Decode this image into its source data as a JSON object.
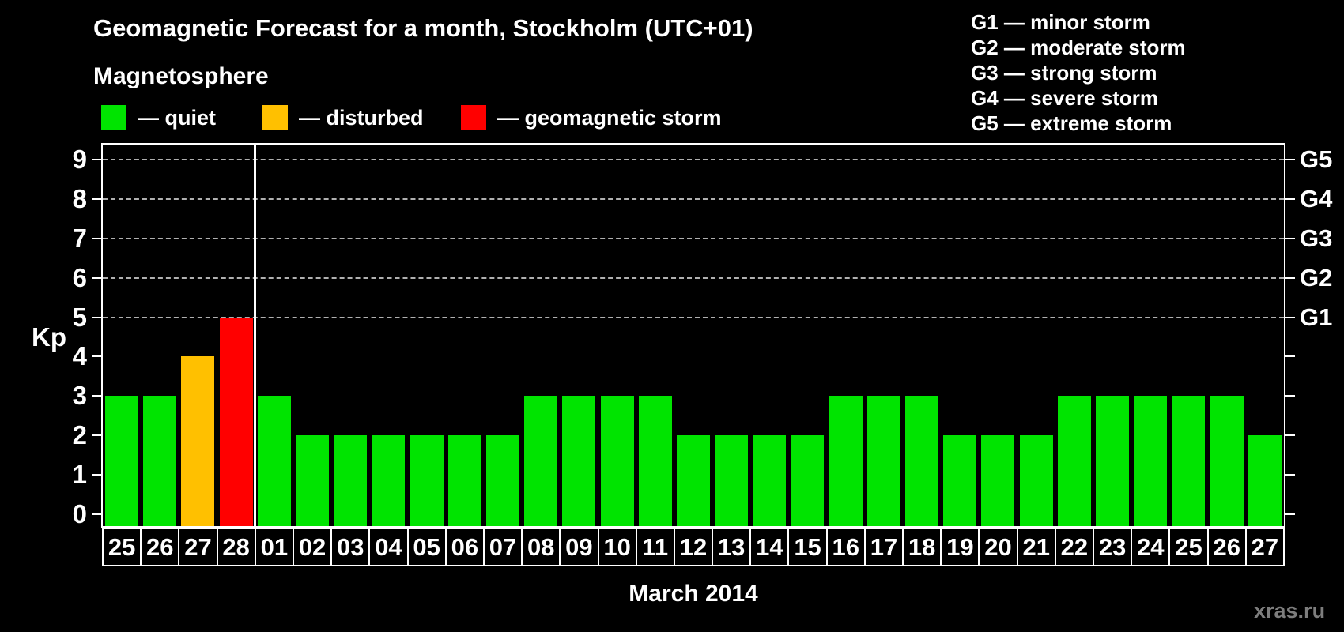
{
  "header": {
    "title": "Geomagnetic Forecast for a month, Stockholm (UTC+01)",
    "subtitle": "Magnetosphere"
  },
  "legend": {
    "items": [
      {
        "key": "quiet",
        "label": "— quiet",
        "color": "#00e400"
      },
      {
        "key": "disturbed",
        "label": "— disturbed",
        "color": "#ffc000"
      },
      {
        "key": "storm",
        "label": "— geomagnetic storm",
        "color": "#ff0000"
      }
    ]
  },
  "g_legend": {
    "items": [
      "G1 — minor storm",
      "G2 — moderate storm",
      "G3 — strong storm",
      "G4 — severe storm",
      "G5 — extreme storm"
    ]
  },
  "axes": {
    "y_label": "Kp",
    "x_title": "March 2014"
  },
  "watermark": "xras.ru",
  "chart_data": {
    "type": "bar",
    "title": "Geomagnetic Forecast for a month, Stockholm (UTC+01)",
    "xlabel": "March 2014",
    "ylabel": "Kp",
    "ylim": [
      0,
      9.4
    ],
    "yticks": [
      0,
      1,
      2,
      3,
      4,
      5,
      6,
      7,
      8,
      9
    ],
    "gridlines_at": [
      5,
      6,
      7,
      8,
      9
    ],
    "grid": "dashed horizontal at storm levels only",
    "legend_position": "top",
    "categories": [
      "25",
      "26",
      "27",
      "28",
      "01",
      "02",
      "03",
      "04",
      "05",
      "06",
      "07",
      "08",
      "09",
      "10",
      "11",
      "12",
      "13",
      "14",
      "15",
      "16",
      "17",
      "18",
      "19",
      "20",
      "21",
      "22",
      "23",
      "24",
      "25",
      "26",
      "27"
    ],
    "values": [
      3,
      3,
      4,
      5,
      3,
      2,
      2,
      2,
      2,
      2,
      2,
      3,
      3,
      3,
      3,
      2,
      2,
      2,
      2,
      3,
      3,
      3,
      2,
      2,
      2,
      3,
      3,
      3,
      3,
      3,
      2
    ],
    "value_states": [
      "quiet",
      "quiet",
      "disturbed",
      "storm",
      "quiet",
      "quiet",
      "quiet",
      "quiet",
      "quiet",
      "quiet",
      "quiet",
      "quiet",
      "quiet",
      "quiet",
      "quiet",
      "quiet",
      "quiet",
      "quiet",
      "quiet",
      "quiet",
      "quiet",
      "quiet",
      "quiet",
      "quiet",
      "quiet",
      "quiet",
      "quiet",
      "quiet",
      "quiet",
      "quiet",
      "quiet"
    ],
    "month_separator_index": 4,
    "right_axis_labels": {
      "5": "G1",
      "6": "G2",
      "7": "G3",
      "8": "G4",
      "9": "G5"
    },
    "colors": {
      "quiet": "#00e400",
      "disturbed": "#ffc000",
      "storm": "#ff0000",
      "grid": "#b0b0b0",
      "axis": "#ffffff",
      "watermark": "#7d7d7d"
    }
  }
}
